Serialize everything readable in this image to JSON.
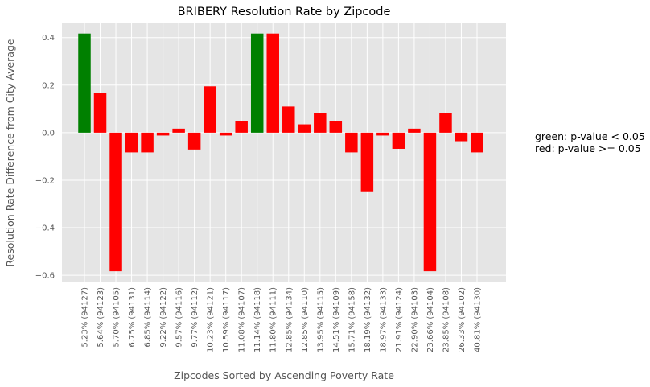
{
  "chart_data": {
    "type": "bar",
    "title": "BRIBERY Resolution Rate by Zipcode",
    "xlabel": "Zipcodes Sorted by Ascending Poverty Rate",
    "ylabel": "Resolution Rate Difference from City Average",
    "ylim": [
      -0.63,
      0.46
    ],
    "yticks": [
      -0.6,
      -0.4,
      -0.2,
      0.0,
      0.2,
      0.4
    ],
    "ytick_labels": [
      "−0.6",
      "−0.4",
      "−0.2",
      "0.0",
      "0.2",
      "0.4"
    ],
    "grid": true,
    "categories": [
      "5.23% (94127)",
      "5.64% (94123)",
      "5.70% (94105)",
      "6.75% (94131)",
      "6.85% (94114)",
      "9.22% (94122)",
      "9.57% (94116)",
      "9.77% (94112)",
      "10.23% (94121)",
      "10.59% (94117)",
      "11.08% (94107)",
      "11.14% (94118)",
      "11.80% (94111)",
      "12.85% (94134)",
      "12.85% (94110)",
      "13.95% (94115)",
      "14.51% (94109)",
      "15.71% (94158)",
      "18.19% (94132)",
      "18.97% (94133)",
      "21.91% (94124)",
      "22.90% (94103)",
      "23.66% (94104)",
      "23.85% (94108)",
      "26.33% (94102)",
      "40.81% (94130)"
    ],
    "values": [
      0.417,
      0.167,
      -0.583,
      -0.083,
      -0.083,
      -0.012,
      0.017,
      -0.071,
      0.195,
      -0.012,
      0.048,
      0.417,
      0.417,
      0.11,
      0.035,
      0.083,
      0.048,
      -0.083,
      -0.25,
      -0.012,
      -0.068,
      0.017,
      -0.583,
      0.083,
      -0.036,
      -0.083
    ],
    "significant": [
      true,
      false,
      false,
      false,
      false,
      false,
      false,
      false,
      false,
      false,
      false,
      true,
      false,
      false,
      false,
      false,
      false,
      false,
      false,
      false,
      false,
      false,
      false,
      false,
      false,
      false
    ],
    "colors": {
      "significant": "#008000",
      "not_significant": "#ff0000",
      "background": "#e5e5e5",
      "grid": "#ffffff",
      "text": "#555555"
    },
    "legend": {
      "placement": "right",
      "lines": [
        "green: p-value < 0.05",
        "red: p-value >= 0.05"
      ]
    }
  }
}
